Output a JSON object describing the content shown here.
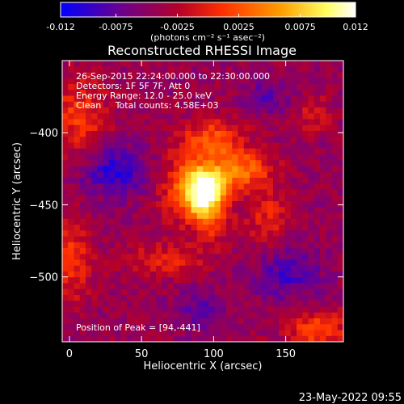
{
  "chart_data": {
    "type": "heatmap",
    "title": "Reconstructed RHESSI Image",
    "xlabel": "Heliocentric X (arcsec)",
    "ylabel": "Heliocentric Y (arcsec)",
    "xlim": [
      -5,
      190
    ],
    "ylim": [
      -545,
      -350
    ],
    "x_ticks": [
      "0",
      "50",
      "100",
      "150"
    ],
    "x_tick_values": [
      0,
      50,
      100,
      150
    ],
    "y_ticks": [
      "-400",
      "-450",
      "-500"
    ],
    "y_tick_values": [
      -400,
      -450,
      -500
    ],
    "colorbar": {
      "range": [
        -0.012,
        0.012
      ],
      "tick_labels": [
        "-0.012",
        "-0.0075",
        "-0.0025",
        "0.0025",
        "0.0075",
        "0.012"
      ],
      "tick_values": [
        -0.012,
        -0.0075,
        -0.0025,
        0.0025,
        0.0075,
        0.012
      ],
      "unit_label": "(photons cm⁻² s⁻¹ asec⁻²)",
      "colors": [
        "#0000ff",
        "#6a0090",
        "#b4002a",
        "#ff3000",
        "#ffa000",
        "#ffff60",
        "#ffffff"
      ]
    },
    "annotations": {
      "time_range": "26-Sep-2015 22:24:00.000 to 22:30:00.000",
      "detectors": "Detectors: 1F 5F 7F, Att 0",
      "energy_range": "Energy Range: 12.0 - 25.0 keV",
      "clean_counts": "Clean     Total counts: 4.58E+03",
      "peak_position": "Position of Peak = [94,-441]"
    },
    "peak": {
      "x": 94,
      "y": -441,
      "value": 0.012
    }
  },
  "footer": {
    "timestamp": "23-May-2022 09:55"
  }
}
